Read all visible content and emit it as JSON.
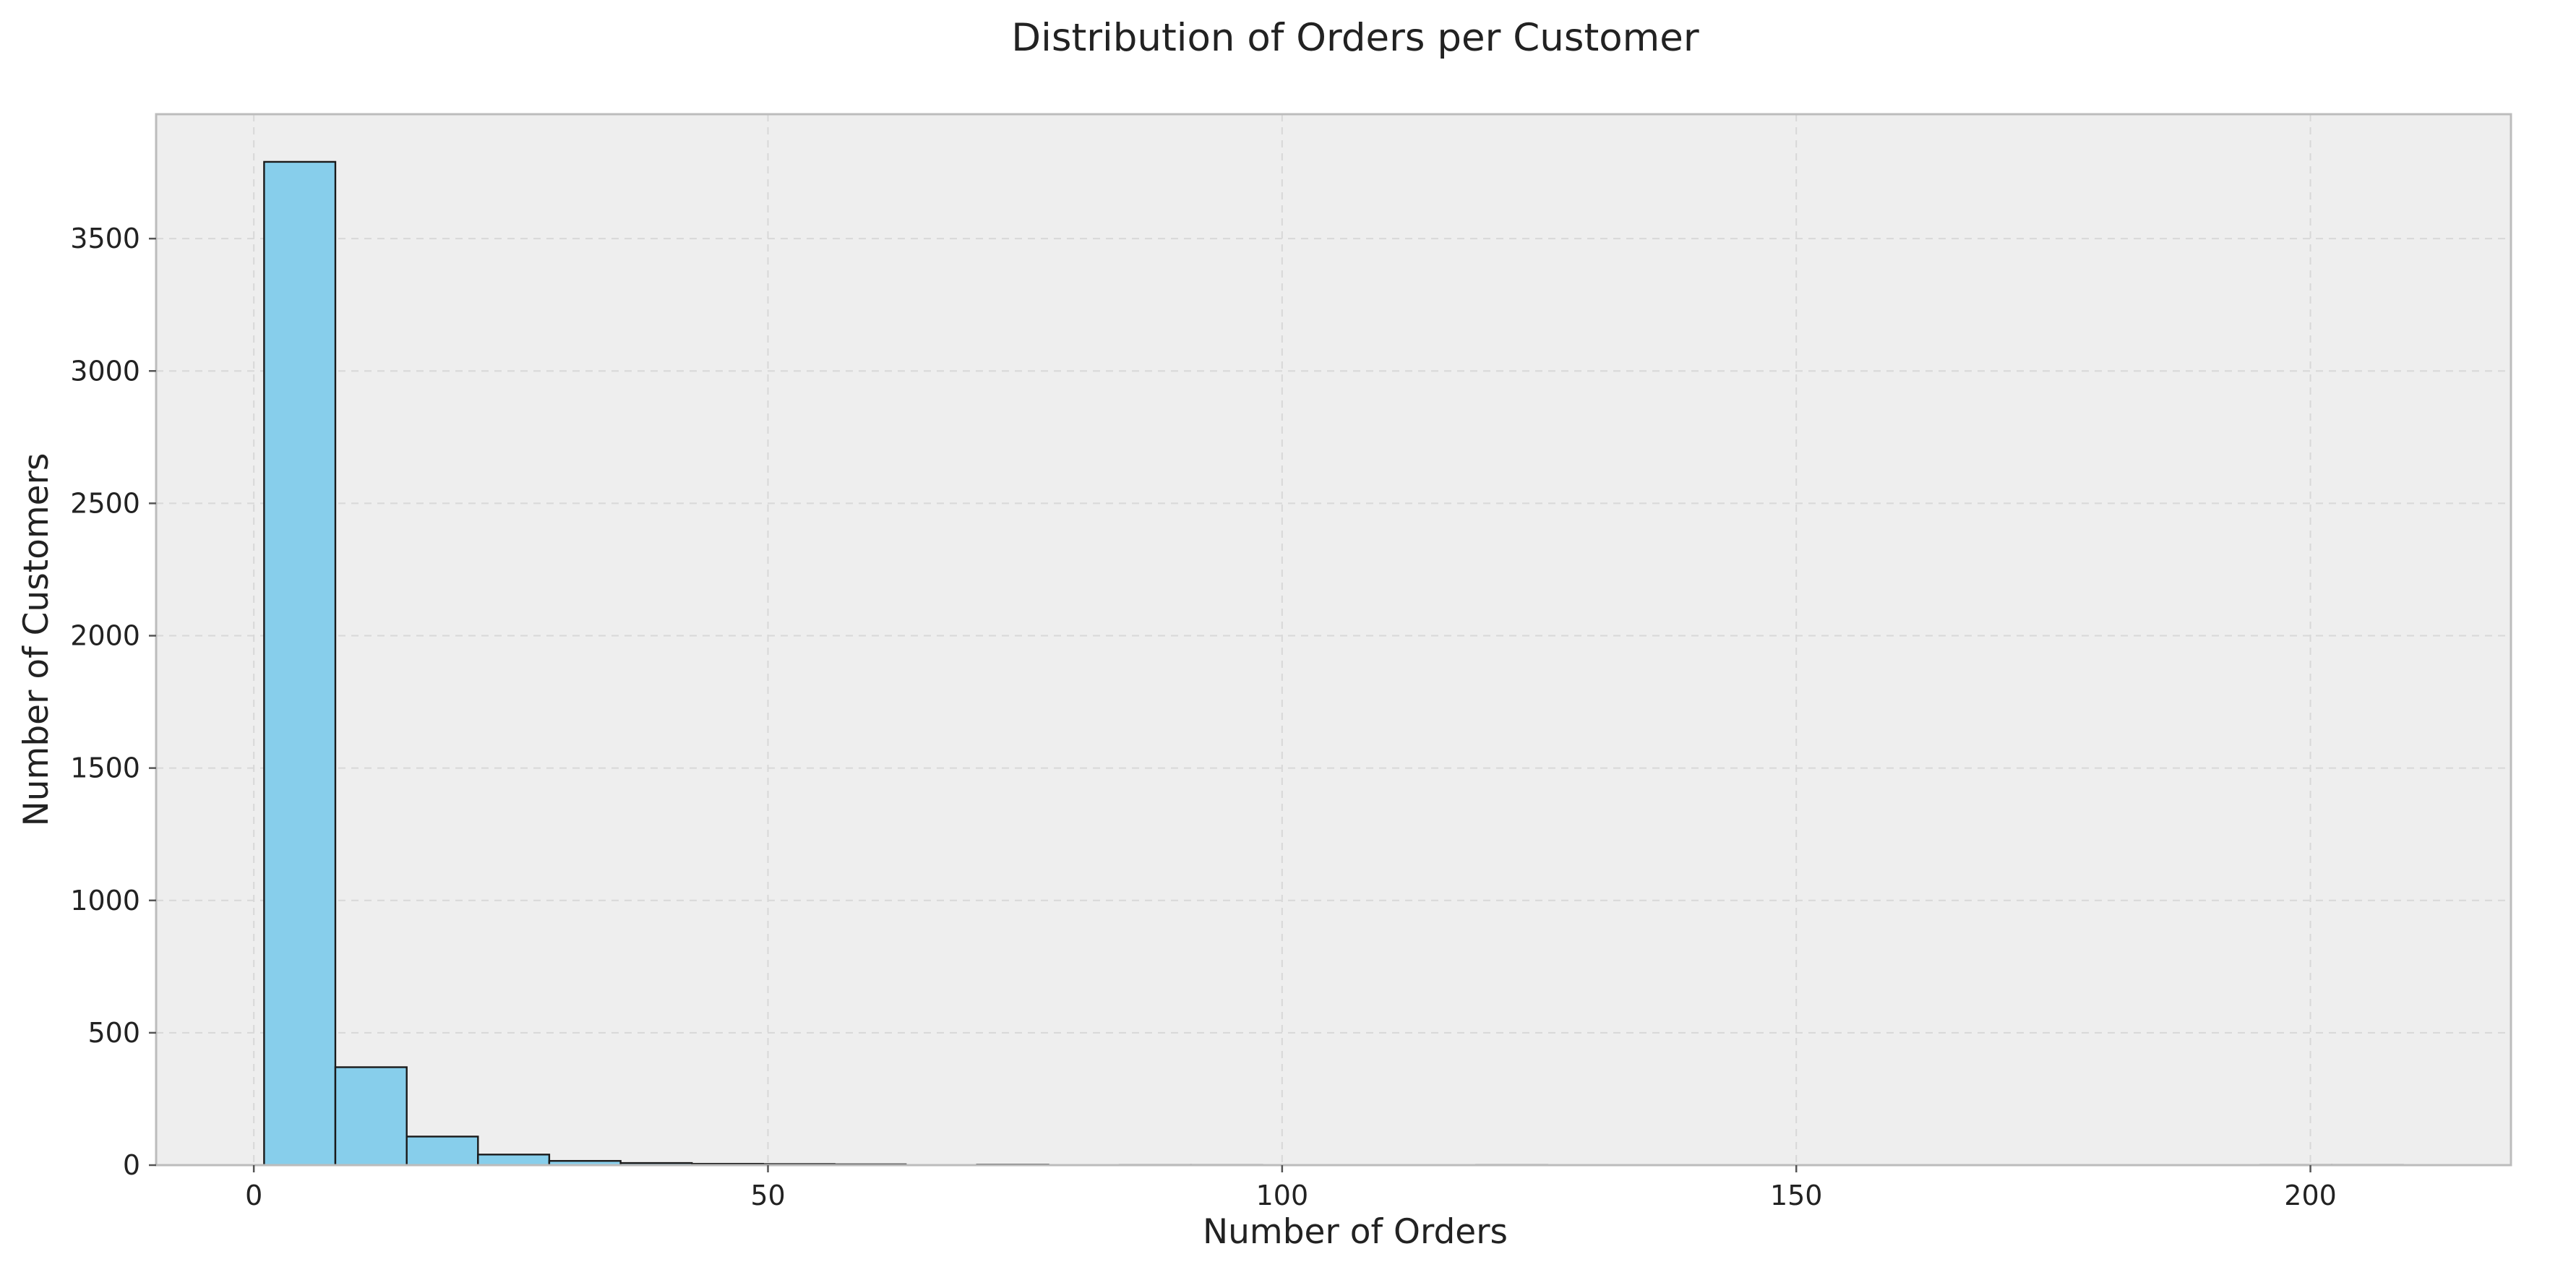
{
  "chart_data": {
    "type": "bar",
    "title": "Distribution of Orders per Customer",
    "xlabel": "Number of Orders",
    "ylabel": "Number of Customers",
    "xlim": [
      -9.5,
      219.5
    ],
    "ylim": [
      0,
      3970
    ],
    "xticks": [
      0,
      50,
      100,
      150,
      200
    ],
    "yticks": [
      0,
      500,
      1000,
      1500,
      2000,
      2500,
      3000,
      3500
    ],
    "grid": true,
    "bar_color": "#87ceeb",
    "edge_color": "#1a1a1a",
    "background_color": "#eeeeee",
    "bins": [
      {
        "start": 1.0,
        "end": 7.93,
        "count": 3790
      },
      {
        "start": 7.93,
        "end": 14.87,
        "count": 370
      },
      {
        "start": 14.87,
        "end": 21.8,
        "count": 108
      },
      {
        "start": 21.8,
        "end": 28.73,
        "count": 40
      },
      {
        "start": 28.73,
        "end": 35.67,
        "count": 16
      },
      {
        "start": 35.67,
        "end": 42.6,
        "count": 8
      },
      {
        "start": 42.6,
        "end": 49.53,
        "count": 5
      },
      {
        "start": 49.53,
        "end": 56.47,
        "count": 4
      },
      {
        "start": 56.47,
        "end": 63.4,
        "count": 3
      },
      {
        "start": 63.4,
        "end": 70.33,
        "count": 0
      },
      {
        "start": 70.33,
        "end": 77.27,
        "count": 2
      },
      {
        "start": 77.27,
        "end": 84.2,
        "count": 0
      },
      {
        "start": 84.2,
        "end": 91.13,
        "count": 1
      },
      {
        "start": 91.13,
        "end": 98.07,
        "count": 1
      },
      {
        "start": 98.07,
        "end": 105.0,
        "count": 0
      },
      {
        "start": 105.0,
        "end": 111.93,
        "count": 0
      },
      {
        "start": 111.93,
        "end": 118.87,
        "count": 0
      },
      {
        "start": 118.87,
        "end": 125.8,
        "count": 1
      },
      {
        "start": 125.8,
        "end": 132.73,
        "count": 0
      },
      {
        "start": 132.73,
        "end": 139.67,
        "count": 0
      },
      {
        "start": 139.67,
        "end": 146.6,
        "count": 0
      },
      {
        "start": 146.6,
        "end": 153.53,
        "count": 0
      },
      {
        "start": 153.53,
        "end": 160.47,
        "count": 0
      },
      {
        "start": 160.47,
        "end": 167.4,
        "count": 0
      },
      {
        "start": 167.4,
        "end": 174.33,
        "count": 0
      },
      {
        "start": 174.33,
        "end": 181.27,
        "count": 0
      },
      {
        "start": 181.27,
        "end": 188.2,
        "count": 0
      },
      {
        "start": 188.2,
        "end": 195.13,
        "count": 0
      },
      {
        "start": 195.13,
        "end": 202.07,
        "count": 1
      },
      {
        "start": 202.07,
        "end": 209.0,
        "count": 1
      }
    ]
  }
}
